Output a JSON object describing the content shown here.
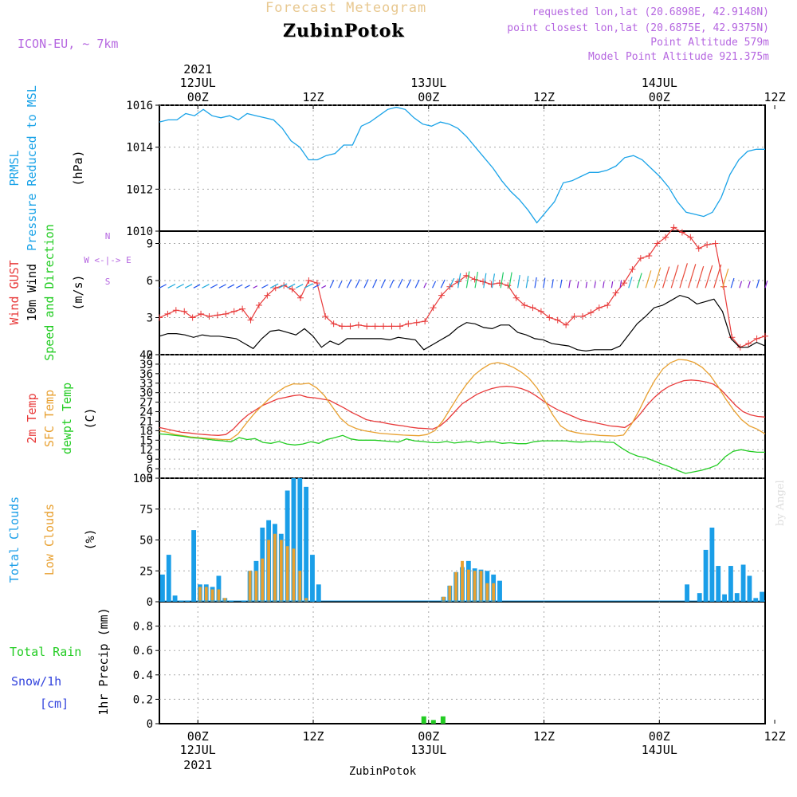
{
  "header": {
    "title": "Forecast Meteogram",
    "location": "ZubinPotok",
    "model": "ICON-EU, ~ 7km",
    "requested": "requested lon,lat (20.6898E, 42.9148N)",
    "closest": "point closest lon,lat (20.6875E, 42.9375N)",
    "point_altitude": "Point Altitude 579m",
    "model_altitude": "Model Point Altitude 921.375m",
    "signature": "by Angel",
    "footer_location": "ZubinPotok"
  },
  "time_axis": {
    "top_year": "2021",
    "top_dates": [
      "12JUL",
      "13JUL",
      "14JUL"
    ],
    "ticks": [
      "00Z",
      "12Z",
      "00Z",
      "12Z",
      "00Z",
      "12Z"
    ],
    "bottom_ticks": [
      "00Z",
      "12Z",
      "00Z",
      "12Z",
      "00Z",
      "12Z"
    ],
    "bottom_dates": [
      "12JUL",
      "13JUL",
      "14JUL"
    ],
    "bottom_year": "2021"
  },
  "panel_labels": {
    "pressure": [
      "PRMSL",
      "Pressure Reduced to MSL"
    ],
    "pressure_unit": "(hPa)",
    "wind": [
      "Wind GUST",
      "10m Wind",
      "Speed and Direction"
    ],
    "wind_unit": "(m/s)",
    "compass": [
      "N",
      "W <-|-> E",
      "S"
    ],
    "temp": [
      "2m Temp",
      "SFC Temp",
      "dewpt Temp"
    ],
    "temp_unit": "(C)",
    "cloud": [
      "Total Clouds",
      "Low Clouds"
    ],
    "cloud_unit": "(%)",
    "precip": [
      "Total  Rain",
      "Snow/1h",
      "[cm]"
    ],
    "precip_unit": "1hr Precip (mm)"
  },
  "colors": {
    "pressure": "#1aa3e8",
    "gust": "#e83a3a",
    "wind": "#000000",
    "t2m": "#e83a3a",
    "sfc": "#e8a030",
    "dewpt": "#22cc22",
    "total_cloud": "#1a9ee8",
    "low_cloud": "#e8a030",
    "rain": "#22cc22",
    "snow": "#3344dd",
    "meta": "#b566e0"
  },
  "chart_data": [
    {
      "type": "line",
      "name": "pressure",
      "x_hours_start": -4,
      "x_hours_end": 59,
      "ylim": [
        1010,
        1016
      ],
      "yticks": [
        1010,
        1012,
        1014,
        1016
      ],
      "grid": true,
      "series": [
        {
          "name": "PRMSL",
          "values": [
            1015.2,
            1015.3,
            1015.3,
            1015.6,
            1015.5,
            1015.8,
            1015.5,
            1015.4,
            1015.5,
            1015.3,
            1015.6,
            1015.5,
            1015.4,
            1015.3,
            1014.9,
            1014.3,
            1014.0,
            1013.4,
            1013.4,
            1013.6,
            1013.7,
            1014.1,
            1014.1,
            1015.0,
            1015.2,
            1015.5,
            1015.8,
            1015.9,
            1015.8,
            1015.4,
            1015.1,
            1015.0,
            1015.2,
            1015.1,
            1014.9,
            1014.5,
            1014.0,
            1013.5,
            1013.0,
            1012.4,
            1011.9,
            1011.5,
            1011.0,
            1010.4,
            1010.9,
            1011.4,
            1012.3,
            1012.4,
            1012.6,
            1012.8,
            1012.8,
            1012.9,
            1013.1,
            1013.5,
            1013.6,
            1013.4,
            1013.0,
            1012.6,
            1012.1,
            1011.4,
            1010.9,
            1010.8,
            1010.7,
            1010.9,
            1011.6,
            1012.7,
            1013.4,
            1013.8,
            1013.9,
            1013.9
          ]
        }
      ]
    },
    {
      "type": "line",
      "name": "wind",
      "ylim": [
        0,
        10
      ],
      "yticks": [
        0,
        3,
        6,
        9
      ],
      "series": [
        {
          "name": "Wind GUST",
          "values": [
            3.0,
            3.3,
            3.6,
            3.5,
            3.0,
            3.3,
            3.1,
            3.2,
            3.3,
            3.5,
            3.7,
            2.8,
            4.0,
            4.8,
            5.4,
            5.6,
            5.3,
            4.6,
            6.0,
            5.8,
            3.1,
            2.5,
            2.3,
            2.3,
            2.4,
            2.3,
            2.3,
            2.3,
            2.3,
            2.3,
            2.5,
            2.6,
            2.7,
            3.8,
            4.8,
            5.5,
            5.9,
            6.4,
            6.1,
            5.9,
            5.7,
            5.8,
            5.6,
            4.6,
            4.0,
            3.8,
            3.5,
            3.0,
            2.8,
            2.4,
            3.1,
            3.1,
            3.4,
            3.8,
            4.0,
            5.0,
            5.8,
            6.9,
            7.8,
            8.0,
            9.0,
            9.5,
            10.3,
            9.9,
            9.5,
            8.6,
            8.9,
            9.0,
            5.5,
            1.4,
            0.6,
            0.9,
            1.3,
            1.5
          ]
        },
        {
          "name": "10m Wind",
          "values": [
            1.5,
            1.7,
            1.7,
            1.6,
            1.4,
            1.6,
            1.5,
            1.5,
            1.4,
            1.3,
            0.9,
            0.5,
            1.3,
            1.9,
            2.0,
            1.8,
            1.6,
            2.1,
            1.5,
            0.6,
            1.1,
            0.8,
            1.3,
            1.3,
            1.3,
            1.3,
            1.3,
            1.2,
            1.4,
            1.3,
            1.2,
            0.4,
            0.8,
            1.2,
            1.6,
            2.2,
            2.6,
            2.5,
            2.2,
            2.1,
            2.4,
            2.4,
            1.8,
            1.6,
            1.3,
            1.2,
            0.9,
            0.8,
            0.7,
            0.4,
            0.3,
            0.4,
            0.4,
            0.4,
            0.7,
            1.6,
            2.5,
            3.1,
            3.8,
            4.0,
            4.4,
            4.8,
            4.6,
            4.1,
            4.3,
            4.5,
            3.5,
            1.3,
            0.6,
            0.6,
            1.0,
            0.7
          ]
        }
      ]
    },
    {
      "type": "line",
      "name": "temperature",
      "ylim": [
        3,
        42
      ],
      "yticks": [
        3,
        6,
        9,
        12,
        15,
        18,
        21,
        24,
        27,
        30,
        33,
        36,
        39,
        42
      ],
      "series": [
        {
          "name": "2m Temp",
          "values": [
            19,
            18.5,
            18,
            17.5,
            17.3,
            17,
            16.8,
            16.6,
            16.5,
            16.8,
            18.5,
            21,
            23,
            24.5,
            26,
            27,
            28,
            28.5,
            29,
            29.3,
            28.6,
            28.4,
            28,
            27.6,
            26.4,
            25.2,
            23.8,
            22.7,
            21.5,
            21,
            20.7,
            20.2,
            19.8,
            19.5,
            19.1,
            18.8,
            18.7,
            18.5,
            19.5,
            21.5,
            24,
            26.5,
            28,
            29.5,
            30.5,
            31.3,
            31.8,
            32,
            31.8,
            31.3,
            30.4,
            29,
            27.3,
            25.8,
            24.5,
            23.5,
            22.5,
            21.5,
            21,
            20.5,
            20,
            19.5,
            19.3,
            19,
            20.5,
            23,
            26,
            28.5,
            30.5,
            32,
            33,
            33.8,
            34,
            33.8,
            33.4,
            32.7,
            31,
            28.5,
            26,
            24,
            23,
            22.5,
            22.3
          ]
        },
        {
          "name": "SFC Temp",
          "values": [
            18,
            17.5,
            16.8,
            16.4,
            16,
            15.8,
            15.6,
            15.4,
            15.2,
            15.2,
            17,
            20.2,
            23.2,
            25.8,
            28.2,
            30.2,
            31.8,
            32.8,
            32.7,
            33,
            31.5,
            29,
            25.5,
            22,
            19.8,
            18.7,
            18,
            17.6,
            17.2,
            17,
            16.8,
            16.6,
            16.5,
            16.4,
            16.8,
            18,
            21,
            25,
            29,
            32.5,
            35.5,
            37.5,
            39,
            39.5,
            39,
            38,
            36.5,
            34.5,
            31.5,
            27.5,
            23,
            19.5,
            18,
            17.4,
            17,
            16.8,
            16.5,
            16.4,
            16.3,
            16.6,
            20,
            24.5,
            29.5,
            34,
            37.5,
            39.5,
            40.5,
            40.3,
            39.5,
            38,
            35.5,
            32,
            28,
            24.5,
            21.5,
            19.5,
            18.5,
            17
          ]
        },
        {
          "name": "dewpt Temp",
          "values": [
            17,
            16.8,
            16.5,
            16.2,
            15.8,
            15.6,
            15.3,
            15,
            14.8,
            14.5,
            15.8,
            15.2,
            15.5,
            14.3,
            14,
            14.6,
            13.8,
            13.5,
            13.8,
            14.5,
            14,
            15.2,
            15.8,
            16.5,
            15.4,
            15,
            15,
            15,
            14.8,
            14.6,
            14.4,
            15.4,
            14.8,
            14.6,
            14.3,
            14.2,
            14.6,
            14.1,
            14.4,
            14.6,
            14.1,
            14.5,
            14.5,
            14,
            14.2,
            13.9,
            13.9,
            14.5,
            14.8,
            14.8,
            14.8,
            14.8,
            14.5,
            14.4,
            14.6,
            14.6,
            14.4,
            14.3,
            12.5,
            11,
            10,
            9.5,
            8.5,
            7.5,
            6.6,
            5.5,
            4.5,
            5,
            5.5,
            6.2,
            7.2,
            9.8,
            11.5,
            12,
            11.5,
            11.2,
            11.2
          ]
        }
      ]
    },
    {
      "type": "bar",
      "name": "clouds",
      "ylim": [
        0,
        100
      ],
      "yticks": [
        0,
        25,
        50,
        75,
        100
      ],
      "series": [
        {
          "name": "Total Clouds",
          "values": [
            22,
            38,
            5,
            1,
            1,
            58,
            14,
            14,
            12,
            21,
            3,
            1,
            0,
            1,
            25,
            33,
            60,
            66,
            63,
            55,
            90,
            100,
            100,
            93,
            38,
            14,
            0,
            0,
            0,
            0,
            0,
            0,
            0,
            0,
            0,
            0,
            0,
            0,
            0,
            0,
            0,
            0,
            0,
            0,
            0,
            4,
            13,
            24,
            28,
            33,
            27,
            26,
            25,
            22,
            17,
            0,
            0,
            0,
            0,
            0,
            0,
            0,
            0,
            0,
            0,
            0,
            0,
            0,
            0,
            0,
            0,
            0,
            0,
            0,
            0,
            0,
            0,
            0,
            0,
            0,
            0,
            0,
            0,
            0,
            14,
            0,
            7,
            42,
            60,
            29,
            6,
            29,
            7,
            30,
            21,
            3,
            8
          ]
        },
        {
          "name": "Low Clouds",
          "values": [
            0,
            0,
            0,
            0,
            0,
            0,
            12,
            12,
            10,
            10,
            3,
            0,
            0,
            0,
            25,
            25,
            35,
            50,
            55,
            50,
            45,
            43,
            25,
            3,
            0,
            0,
            0,
            0,
            0,
            0,
            0,
            0,
            0,
            0,
            0,
            0,
            0,
            0,
            0,
            0,
            0,
            0,
            0,
            0,
            0,
            4,
            13,
            24,
            33,
            26,
            25,
            25,
            15,
            15,
            0,
            0,
            0,
            0,
            0,
            0,
            0,
            0,
            0,
            0,
            0,
            0,
            0,
            0,
            0,
            0,
            0,
            0,
            0,
            0,
            0,
            0,
            0,
            0,
            0,
            0,
            0,
            0,
            0,
            0,
            0,
            0,
            0,
            0,
            0,
            0,
            0,
            0,
            0,
            0,
            0,
            0,
            0
          ]
        }
      ]
    },
    {
      "type": "bar",
      "name": "precipitation",
      "ylim": [
        0,
        1.0
      ],
      "yticks": [
        0,
        0.2,
        0.4,
        0.6,
        0.8
      ],
      "series": [
        {
          "name": "Total Rain",
          "x": [
            23.5,
            24.5,
            25.5
          ],
          "values": [
            0.06,
            0.03,
            0.06
          ]
        },
        {
          "name": "Snow/1h",
          "values": []
        }
      ]
    }
  ]
}
